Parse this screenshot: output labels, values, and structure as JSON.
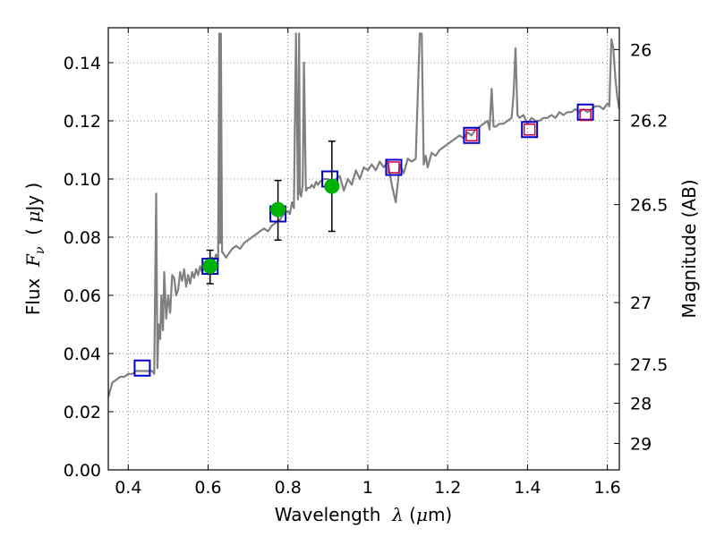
{
  "chart_data": {
    "type": "line",
    "xlabel": "Wavelength λ (μm)",
    "ylabel": "Flux F_ν (μJy)",
    "y2label": "Magnitude (AB)",
    "xlim": [
      0.35,
      1.63
    ],
    "ylim": [
      0.0,
      0.152
    ],
    "grid": true,
    "x_ticks": [
      0.4,
      0.6,
      0.8,
      1.0,
      1.2,
      1.4,
      1.6
    ],
    "x_tick_labels": [
      "0.4",
      "0.6",
      "0.8",
      "1",
      "1.2",
      "1.4",
      "1.6"
    ],
    "y_ticks": [
      0.0,
      0.02,
      0.04,
      0.06,
      0.08,
      0.1,
      0.12,
      0.14
    ],
    "y_tick_labels": [
      "0.00",
      "0.02",
      "0.04",
      "0.06",
      "0.08",
      "0.10",
      "0.12",
      "0.14"
    ],
    "y2_ticks": [
      {
        "label": "26",
        "flux": 0.1445
      },
      {
        "label": "26.2",
        "flux": 0.1202
      },
      {
        "label": "26.5",
        "flux": 0.0912
      },
      {
        "label": "27",
        "flux": 0.0575
      },
      {
        "label": "27.5",
        "flux": 0.0363
      },
      {
        "label": "28",
        "flux": 0.0229
      },
      {
        "label": "29",
        "flux": 0.0091
      }
    ],
    "series": [
      {
        "type": "line",
        "color": "#808080",
        "x": [
          0.35,
          0.36,
          0.37,
          0.38,
          0.39,
          0.4,
          0.41,
          0.42,
          0.43,
          0.44,
          0.45,
          0.46,
          0.465,
          0.47,
          0.473,
          0.476,
          0.48,
          0.483,
          0.487,
          0.49,
          0.495,
          0.5,
          0.505,
          0.51,
          0.515,
          0.52,
          0.525,
          0.53,
          0.535,
          0.54,
          0.545,
          0.55,
          0.555,
          0.56,
          0.565,
          0.57,
          0.575,
          0.58,
          0.585,
          0.59,
          0.595,
          0.6,
          0.605,
          0.61,
          0.615,
          0.62,
          0.625,
          0.628,
          0.63,
          0.632,
          0.635,
          0.64,
          0.645,
          0.65,
          0.655,
          0.66,
          0.67,
          0.68,
          0.69,
          0.7,
          0.71,
          0.72,
          0.73,
          0.74,
          0.75,
          0.76,
          0.77,
          0.78,
          0.79,
          0.8,
          0.805,
          0.81,
          0.815,
          0.82,
          0.825,
          0.828,
          0.83,
          0.833,
          0.837,
          0.84,
          0.845,
          0.85,
          0.855,
          0.86,
          0.865,
          0.87,
          0.875,
          0.88,
          0.89,
          0.9,
          0.91,
          0.92,
          0.93,
          0.94,
          0.95,
          0.96,
          0.97,
          0.98,
          0.99,
          1.0,
          1.01,
          1.02,
          1.03,
          1.04,
          1.05,
          1.06,
          1.07,
          1.08,
          1.09,
          1.1,
          1.11,
          1.12,
          1.13,
          1.135,
          1.14,
          1.145,
          1.15,
          1.16,
          1.17,
          1.18,
          1.19,
          1.2,
          1.21,
          1.22,
          1.23,
          1.24,
          1.25,
          1.26,
          1.27,
          1.28,
          1.29,
          1.3,
          1.305,
          1.31,
          1.315,
          1.32,
          1.33,
          1.34,
          1.35,
          1.36,
          1.365,
          1.37,
          1.375,
          1.38,
          1.39,
          1.4,
          1.41,
          1.42,
          1.43,
          1.44,
          1.45,
          1.46,
          1.47,
          1.48,
          1.49,
          1.5,
          1.51,
          1.52,
          1.53,
          1.54,
          1.55,
          1.56,
          1.57,
          1.58,
          1.59,
          1.6,
          1.605,
          1.61,
          1.615,
          1.62,
          1.625,
          1.63
        ],
        "y": [
          0.025,
          0.03,
          0.031,
          0.032,
          0.032,
          0.033,
          0.033,
          0.034,
          0.034,
          0.034,
          0.034,
          0.034,
          0.033,
          0.095,
          0.035,
          0.05,
          0.045,
          0.06,
          0.048,
          0.068,
          0.052,
          0.06,
          0.054,
          0.067,
          0.066,
          0.06,
          0.062,
          0.068,
          0.065,
          0.069,
          0.063,
          0.067,
          0.064,
          0.068,
          0.066,
          0.069,
          0.067,
          0.07,
          0.068,
          0.07,
          0.069,
          0.072,
          0.068,
          0.073,
          0.072,
          0.074,
          0.072,
          0.15,
          0.078,
          0.15,
          0.075,
          0.074,
          0.073,
          0.074,
          0.075,
          0.076,
          0.077,
          0.076,
          0.078,
          0.079,
          0.08,
          0.081,
          0.082,
          0.083,
          0.082,
          0.084,
          0.085,
          0.086,
          0.088,
          0.089,
          0.088,
          0.092,
          0.09,
          0.15,
          0.093,
          0.15,
          0.095,
          0.094,
          0.098,
          0.14,
          0.096,
          0.097,
          0.097,
          0.098,
          0.097,
          0.099,
          0.098,
          0.099,
          0.1,
          0.1,
          0.099,
          0.1,
          0.101,
          0.096,
          0.1,
          0.098,
          0.103,
          0.1,
          0.104,
          0.103,
          0.105,
          0.103,
          0.106,
          0.104,
          0.106,
          0.098,
          0.092,
          0.105,
          0.102,
          0.107,
          0.106,
          0.107,
          0.15,
          0.15,
          0.105,
          0.108,
          0.104,
          0.109,
          0.108,
          0.11,
          0.111,
          0.112,
          0.113,
          0.114,
          0.115,
          0.114,
          0.116,
          0.115,
          0.117,
          0.118,
          0.119,
          0.12,
          0.117,
          0.131,
          0.118,
          0.118,
          0.119,
          0.119,
          0.12,
          0.121,
          0.129,
          0.145,
          0.122,
          0.121,
          0.122,
          0.119,
          0.121,
          0.12,
          0.12,
          0.121,
          0.121,
          0.122,
          0.121,
          0.123,
          0.122,
          0.123,
          0.123,
          0.124,
          0.123,
          0.124,
          0.123,
          0.124,
          0.125,
          0.125,
          0.124,
          0.126,
          0.125,
          0.148,
          0.145,
          0.135,
          0.128,
          0.124
        ]
      },
      {
        "type": "points",
        "marker": "open-square",
        "color": "#0000cc",
        "x": [
          0.435,
          0.605,
          0.775,
          0.905,
          1.065,
          1.26,
          1.405,
          1.545
        ],
        "y": [
          0.035,
          0.07,
          0.088,
          0.1,
          0.104,
          0.115,
          0.117,
          0.123
        ]
      },
      {
        "type": "points",
        "marker": "open-square",
        "color": "#cc0044",
        "x": [
          1.065,
          1.26,
          1.405,
          1.545
        ],
        "y": [
          0.104,
          0.115,
          0.117,
          0.122
        ]
      },
      {
        "type": "points",
        "marker": "filled-circle",
        "color": "#00b200",
        "x": [
          0.605,
          0.775,
          0.91
        ],
        "y": [
          0.07,
          0.0895,
          0.0975
        ],
        "error": [
          [
            0.064,
            0.0755
          ],
          [
            0.079,
            0.0995
          ],
          [
            0.082,
            0.113
          ]
        ]
      }
    ]
  }
}
